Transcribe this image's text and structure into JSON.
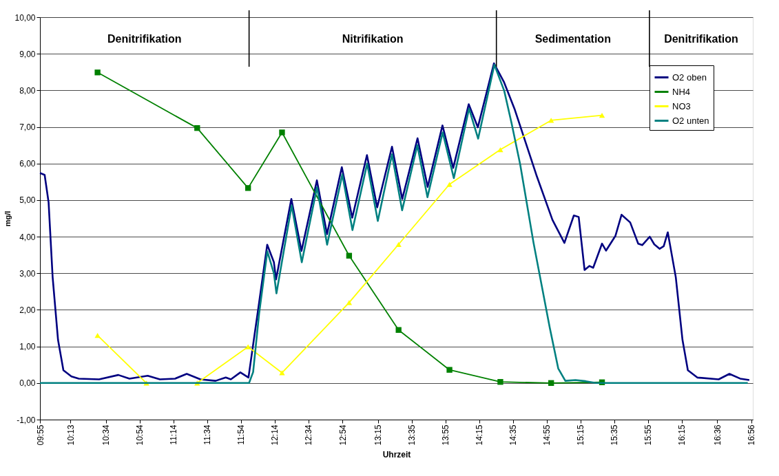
{
  "chart_data": {
    "type": "line",
    "xlabel": "Uhrzeit",
    "ylabel": "mg/l",
    "xlim": [
      9.9167,
      16.95
    ],
    "ylim": [
      -1,
      10
    ],
    "xticks": [
      {
        "value": 9.9167,
        "label": "09:55"
      },
      {
        "value": 10.2167,
        "label": "10:13"
      },
      {
        "value": 10.5667,
        "label": "10:34"
      },
      {
        "value": 10.9,
        "label": "10:54"
      },
      {
        "value": 11.2333,
        "label": "11:14"
      },
      {
        "value": 11.5667,
        "label": "11:34"
      },
      {
        "value": 11.9,
        "label": "11:54"
      },
      {
        "value": 12.2333,
        "label": "12:14"
      },
      {
        "value": 12.5667,
        "label": "12:34"
      },
      {
        "value": 12.9,
        "label": "12:54"
      },
      {
        "value": 13.25,
        "label": "13:15"
      },
      {
        "value": 13.5833,
        "label": "13:35"
      },
      {
        "value": 13.9167,
        "label": "13:55"
      },
      {
        "value": 14.25,
        "label": "14:15"
      },
      {
        "value": 14.5833,
        "label": "14:35"
      },
      {
        "value": 14.9167,
        "label": "14:55"
      },
      {
        "value": 15.25,
        "label": "15:15"
      },
      {
        "value": 15.5833,
        "label": "15:35"
      },
      {
        "value": 15.9167,
        "label": "15:55"
      },
      {
        "value": 16.25,
        "label": "16:15"
      },
      {
        "value": 16.6,
        "label": "16:36"
      },
      {
        "value": 16.9333,
        "label": "16:56"
      }
    ],
    "yticks": [
      {
        "value": -1,
        "label": "-1,00"
      },
      {
        "value": 0,
        "label": "0,00"
      },
      {
        "value": 1,
        "label": "1,00"
      },
      {
        "value": 2,
        "label": "2,00"
      },
      {
        "value": 3,
        "label": "3,00"
      },
      {
        "value": 4,
        "label": "4,00"
      },
      {
        "value": 5,
        "label": "5,00"
      },
      {
        "value": 6,
        "label": "6,00"
      },
      {
        "value": 7,
        "label": "7,00"
      },
      {
        "value": 8,
        "label": "8,00"
      },
      {
        "value": 9,
        "label": "9,00"
      },
      {
        "value": 10,
        "label": "10,00"
      }
    ],
    "grid": "y",
    "legend": "top right",
    "line_style": "solid",
    "series": [
      {
        "name": "O2 oben",
        "color": "#000080",
        "marker": "none",
        "x": [
          9.9167,
          9.963,
          10.002,
          10.042,
          10.095,
          10.148,
          10.227,
          10.3,
          10.5,
          10.69,
          10.8,
          10.98,
          11.1,
          11.25,
          11.365,
          11.5,
          11.65,
          11.75,
          11.8,
          11.894,
          11.974,
          12.079,
          12.159,
          12.225,
          12.246,
          12.397,
          12.497,
          12.649,
          12.749,
          12.895,
          12.998,
          13.143,
          13.244,
          13.39,
          13.491,
          13.642,
          13.742,
          13.888,
          13.994,
          14.147,
          14.237,
          14.396,
          14.496,
          14.602,
          14.708,
          14.814,
          14.973,
          15.091,
          15.184,
          15.232,
          15.29,
          15.337,
          15.375,
          15.462,
          15.502,
          15.594,
          15.655,
          15.74,
          15.819,
          15.859,
          15.933,
          15.978,
          16.031,
          16.071,
          16.111,
          16.19,
          16.256,
          16.309,
          16.402,
          16.613,
          16.719,
          16.825,
          16.915
        ],
        "values": [
          5.74,
          5.69,
          4.94,
          2.89,
          1.18,
          0.35,
          0.18,
          0.12,
          0.1,
          0.22,
          0.12,
          0.2,
          0.1,
          0.12,
          0.25,
          0.1,
          0.06,
          0.15,
          0.1,
          0.29,
          0.15,
          2.2,
          3.78,
          3.3,
          2.83,
          5.03,
          3.61,
          5.54,
          4.07,
          5.9,
          4.52,
          6.23,
          4.8,
          6.46,
          5.03,
          6.69,
          5.36,
          7.04,
          5.88,
          7.62,
          6.99,
          8.74,
          8.22,
          7.47,
          6.58,
          5.69,
          4.46,
          3.83,
          4.58,
          4.54,
          3.09,
          3.2,
          3.15,
          3.81,
          3.62,
          4.02,
          4.6,
          4.39,
          3.81,
          3.77,
          4.0,
          3.79,
          3.67,
          3.74,
          4.12,
          2.89,
          1.18,
          0.35,
          0.15,
          0.1,
          0.25,
          0.12,
          0.08
        ]
      },
      {
        "name": "NH4",
        "color": "#008000",
        "marker": "square",
        "x": [
          10.485,
          11.468,
          11.97,
          12.305,
          12.967,
          13.455,
          13.957,
          14.459,
          14.96,
          15.462
        ],
        "values": [
          8.49,
          6.97,
          5.33,
          6.85,
          3.48,
          1.45,
          0.36,
          0.03,
          0.0,
          0.02
        ]
      },
      {
        "name": "NO3",
        "color": "#ffff00",
        "marker": "triangle",
        "x": [
          10.485,
          10.967,
          11.468,
          11.97,
          12.305,
          12.967,
          13.455,
          13.957,
          14.459,
          14.96,
          15.462
        ],
        "values": [
          1.3,
          0.0,
          0.0,
          0.99,
          0.28,
          2.2,
          3.79,
          5.43,
          6.38,
          7.18,
          7.32
        ]
      },
      {
        "name": "O2 unten",
        "color": "#008080",
        "marker": "none",
        "x": [
          9.9167,
          11.98,
          12.02,
          12.079,
          12.16,
          12.225,
          12.25,
          12.4,
          12.5,
          12.65,
          12.75,
          12.9,
          13.0,
          13.145,
          13.25,
          13.39,
          13.49,
          13.64,
          13.74,
          13.89,
          14.0,
          14.15,
          14.24,
          14.4,
          14.497,
          14.57,
          14.655,
          14.786,
          14.946,
          15.03,
          15.1,
          15.2,
          15.3,
          15.4,
          16.9
        ],
        "values": [
          0.0,
          0.0,
          0.3,
          1.9,
          3.6,
          3.0,
          2.45,
          4.85,
          3.3,
          5.35,
          3.78,
          5.7,
          4.18,
          6.0,
          4.43,
          6.25,
          4.72,
          6.5,
          5.08,
          6.85,
          5.6,
          7.5,
          6.68,
          8.7,
          7.99,
          7.1,
          5.97,
          3.84,
          1.52,
          0.4,
          0.06,
          0.08,
          0.05,
          0.0,
          0.0
        ]
      }
    ],
    "ref_lines": [
      {
        "axis": "x",
        "value": 11.98
      },
      {
        "axis": "x",
        "value": 14.42
      },
      {
        "axis": "x",
        "value": 15.93
      }
    ],
    "annotations": [
      "Denitrifikation",
      "Nitrifikation",
      "Sedimentation",
      "Denitrifikation"
    ]
  }
}
